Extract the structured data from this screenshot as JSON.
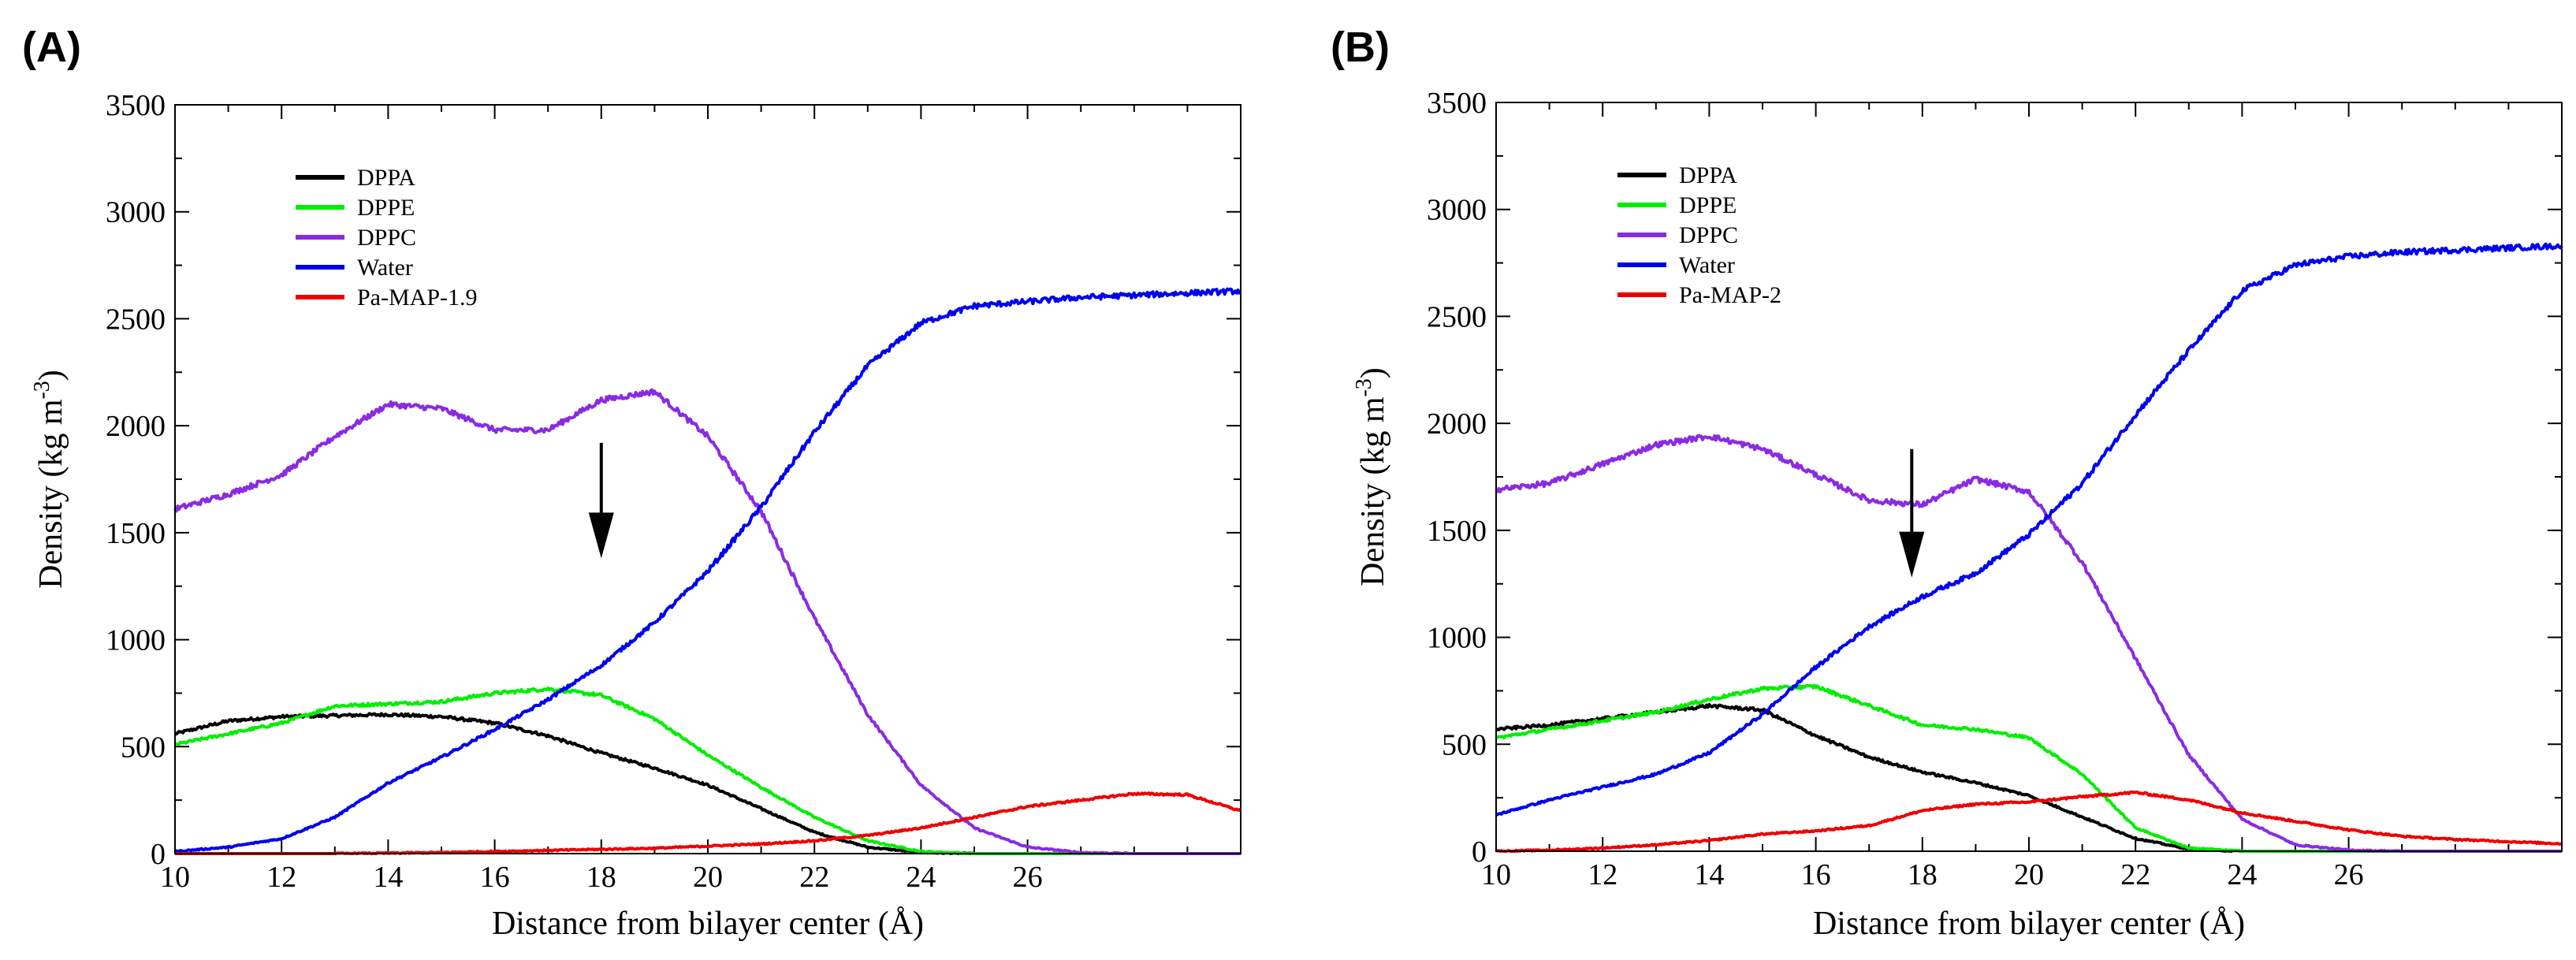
{
  "chart_data": [
    {
      "type": "line",
      "panel_label": "(A)",
      "xlabel": "Distance from bilayer center (Å)",
      "ylabel": "Density (kg m",
      "ylabel_sup": "-3",
      "ylabel_close": ")",
      "xlim": [
        10,
        30
      ],
      "ylim": [
        0,
        3500
      ],
      "xticks": [
        10,
        12,
        14,
        16,
        18,
        20,
        22,
        24,
        26
      ],
      "yticks": [
        0,
        500,
        1000,
        1500,
        2000,
        2500,
        3000,
        3500
      ],
      "legend_position": "top-left",
      "annotation": {
        "type": "arrow-down",
        "x": 18,
        "y_start": 1920,
        "y_end": 1380
      },
      "series": [
        {
          "name": "DPPA",
          "color": "#000000",
          "x": [
            10,
            11,
            12,
            13,
            14,
            15,
            16,
            17,
            18,
            19,
            20,
            21,
            22,
            23,
            24,
            25,
            26,
            27,
            28,
            29,
            30
          ],
          "y": [
            560,
            620,
            640,
            645,
            650,
            640,
            610,
            550,
            470,
            400,
            320,
            210,
            100,
            30,
            5,
            0,
            0,
            0,
            0,
            0,
            0
          ]
        },
        {
          "name": "DPPE",
          "color": "#00ee00",
          "x": [
            10,
            11,
            12,
            13,
            14,
            15,
            16,
            17,
            18,
            19,
            20,
            21,
            22,
            23,
            24,
            25,
            26,
            27,
            28,
            29,
            30
          ],
          "y": [
            510,
            560,
            610,
            690,
            700,
            710,
            750,
            770,
            740,
            630,
            460,
            310,
            170,
            60,
            10,
            0,
            0,
            0,
            0,
            0,
            0
          ]
        },
        {
          "name": "DPPC",
          "color": "#8a2be2",
          "x": [
            10,
            11,
            12,
            13,
            14,
            15,
            16,
            17,
            18,
            19,
            20,
            21,
            22,
            23,
            24,
            25,
            26,
            27,
            28,
            29,
            30
          ],
          "y": [
            1610,
            1680,
            1770,
            1950,
            2100,
            2080,
            1980,
            1980,
            2120,
            2160,
            1950,
            1600,
            1100,
            650,
            320,
            120,
            30,
            5,
            0,
            0,
            0
          ]
        },
        {
          "name": "Water",
          "color": "#0000ee",
          "x": [
            10,
            11,
            12,
            13,
            14,
            15,
            16,
            17,
            18,
            19,
            20,
            21,
            22,
            23,
            24,
            25,
            26,
            27,
            28,
            29,
            30
          ],
          "y": [
            10,
            30,
            70,
            170,
            330,
            450,
            580,
            720,
            880,
            1080,
            1320,
            1620,
            1970,
            2280,
            2480,
            2560,
            2580,
            2600,
            2610,
            2620,
            2630
          ]
        },
        {
          "name": "Pa-MAP-1.9",
          "color": "#ee0000",
          "x": [
            10,
            11,
            12,
            13,
            14,
            15,
            16,
            17,
            18,
            19,
            20,
            21,
            22,
            23,
            24,
            25,
            26,
            27,
            28,
            29,
            30
          ],
          "y": [
            0,
            0,
            0,
            0,
            2,
            5,
            10,
            15,
            20,
            25,
            35,
            45,
            60,
            85,
            120,
            170,
            220,
            250,
            280,
            275,
            200
          ]
        }
      ]
    },
    {
      "type": "line",
      "panel_label": "(B)",
      "xlabel": "Distance from bilayer center (Å)",
      "ylabel": "Density (kg m",
      "ylabel_sup": "-3",
      "ylabel_close": ")",
      "xlim": [
        10,
        30
      ],
      "ylim": [
        0,
        3500
      ],
      "xticks": [
        10,
        12,
        14,
        16,
        18,
        20,
        22,
        24,
        26
      ],
      "yticks": [
        0,
        500,
        1000,
        1500,
        2000,
        2500,
        3000,
        3500
      ],
      "legend_position": "top-left",
      "annotation": {
        "type": "arrow-down",
        "x": 17.8,
        "y_start": 1880,
        "y_end": 1280
      },
      "series": [
        {
          "name": "DPPA",
          "color": "#000000",
          "x": [
            10,
            11,
            12,
            13,
            14,
            15,
            16,
            17,
            18,
            19,
            20,
            21,
            22,
            23,
            24,
            25,
            26,
            27,
            28,
            29,
            30
          ],
          "y": [
            570,
            590,
            620,
            650,
            680,
            660,
            540,
            440,
            370,
            320,
            260,
            160,
            60,
            10,
            0,
            0,
            0,
            0,
            0,
            0,
            0
          ]
        },
        {
          "name": "DPPE",
          "color": "#00ee00",
          "x": [
            10,
            11,
            12,
            13,
            14,
            15,
            16,
            17,
            18,
            19,
            20,
            21,
            22,
            23,
            24,
            25,
            26,
            27,
            28,
            29,
            30
          ],
          "y": [
            530,
            570,
            610,
            650,
            710,
            760,
            770,
            680,
            590,
            570,
            530,
            360,
            110,
            15,
            0,
            0,
            0,
            0,
            0,
            0,
            0
          ]
        },
        {
          "name": "DPPC",
          "color": "#8a2be2",
          "x": [
            10,
            11,
            12,
            13,
            14,
            15,
            16,
            17,
            18,
            19,
            20,
            21,
            22,
            23,
            24,
            25,
            26,
            27,
            28,
            29,
            30
          ],
          "y": [
            1690,
            1720,
            1810,
            1900,
            1940,
            1880,
            1760,
            1640,
            1620,
            1740,
            1680,
            1350,
            900,
            450,
            150,
            30,
            5,
            0,
            0,
            0,
            0
          ]
        },
        {
          "name": "Water",
          "color": "#0000ee",
          "x": [
            10,
            11,
            12,
            13,
            14,
            15,
            16,
            17,
            18,
            19,
            20,
            21,
            22,
            23,
            24,
            25,
            26,
            27,
            28,
            29,
            30
          ],
          "y": [
            170,
            240,
            300,
            360,
            460,
            640,
            860,
            1050,
            1190,
            1300,
            1480,
            1720,
            2040,
            2340,
            2620,
            2740,
            2780,
            2800,
            2810,
            2820,
            2830
          ]
        },
        {
          "name": "Pa-MAP-2",
          "color": "#ee0000",
          "x": [
            10,
            11,
            12,
            13,
            14,
            15,
            16,
            17,
            18,
            19,
            20,
            21,
            22,
            23,
            24,
            25,
            26,
            27,
            28,
            29,
            30
          ],
          "y": [
            0,
            5,
            15,
            30,
            50,
            80,
            95,
            120,
            190,
            220,
            230,
            255,
            275,
            240,
            180,
            140,
            100,
            70,
            55,
            45,
            35
          ]
        }
      ]
    }
  ]
}
